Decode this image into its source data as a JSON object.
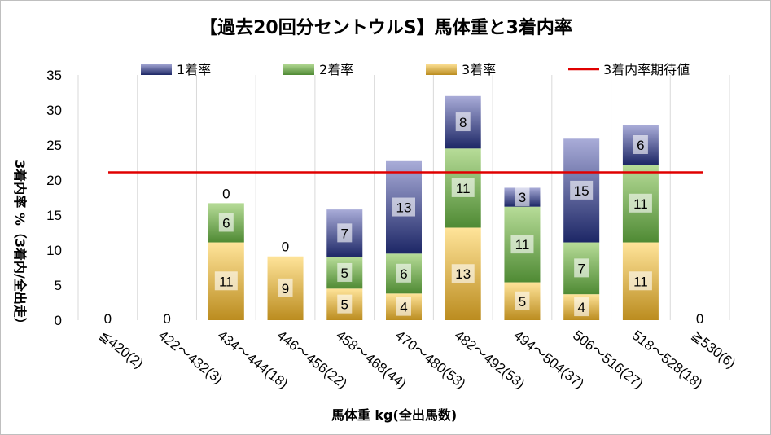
{
  "chart_data": {
    "type": "bar",
    "stacked": true,
    "title": "【過去20回分セントウルS】馬体重と3着内率",
    "xlabel": "馬体重 kg(全出馬数)",
    "ylabel": "3着内率 %（3着内/全出走）",
    "ylim": [
      0,
      35
    ],
    "yticks": [
      0,
      5,
      10,
      15,
      20,
      25,
      30,
      35
    ],
    "grid": "vertical",
    "legend_position": "top",
    "categories": [
      "≦420(2)",
      "422～432(3)",
      "434～444(18)",
      "446～456(22)",
      "458～468(44)",
      "470～480(53)",
      "482～492(53)",
      "494～504(37)",
      "506～516(27)",
      "518～528(18)",
      "≧530(6)"
    ],
    "series": [
      {
        "name": "3着率",
        "values": [
          0,
          0,
          11.1,
          9.1,
          4.5,
          3.8,
          13.2,
          5.4,
          3.7,
          11.1,
          0
        ],
        "labels": [
          "0",
          "0",
          "11",
          "9",
          "5",
          "4",
          "13",
          "5",
          "4",
          "11",
          "0"
        ],
        "color": "#c9a227"
      },
      {
        "name": "2着率",
        "values": [
          0,
          0,
          5.6,
          0,
          4.5,
          5.7,
          11.3,
          10.8,
          7.4,
          11.1,
          0
        ],
        "labels": [
          "",
          "",
          "6",
          "",
          "5",
          "6",
          "11",
          "11",
          "7",
          "11",
          ""
        ],
        "color": "#5f9a3e"
      },
      {
        "name": "1着率",
        "values": [
          0,
          0,
          0,
          0,
          6.8,
          13.2,
          7.5,
          2.7,
          14.8,
          5.6,
          0
        ],
        "labels": [
          "",
          "",
          "0",
          "0",
          "7",
          "13",
          "8",
          "3",
          "15",
          "6",
          ""
        ],
        "color": "#2e3a80"
      }
    ],
    "reference_line": {
      "name": "3着内率期待値",
      "value": 21.1,
      "color": "#e00000"
    }
  }
}
